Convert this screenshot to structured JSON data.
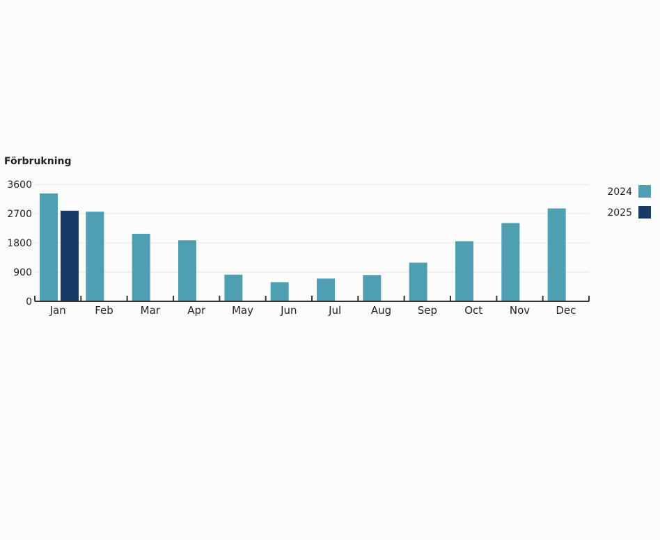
{
  "chart_data": {
    "type": "bar",
    "ylabel": "Förbrukning",
    "categories": [
      "Jan",
      "Feb",
      "Mar",
      "Apr",
      "May",
      "Jun",
      "Jul",
      "Aug",
      "Sep",
      "Oct",
      "Nov",
      "Dec"
    ],
    "series": [
      {
        "name": "2024",
        "color": "#4d9fb1",
        "values": [
          3320,
          2760,
          2080,
          1880,
          820,
          590,
          700,
          810,
          1190,
          1850,
          2410,
          2860
        ]
      },
      {
        "name": "2025",
        "color": "#163c66",
        "values": [
          2790,
          null,
          null,
          null,
          null,
          null,
          null,
          null,
          null,
          null,
          null,
          null
        ]
      }
    ],
    "yticks": [
      0,
      900,
      1800,
      2700,
      3600
    ],
    "ylim": [
      0,
      3600
    ],
    "grid": true,
    "legend_position": "right"
  }
}
